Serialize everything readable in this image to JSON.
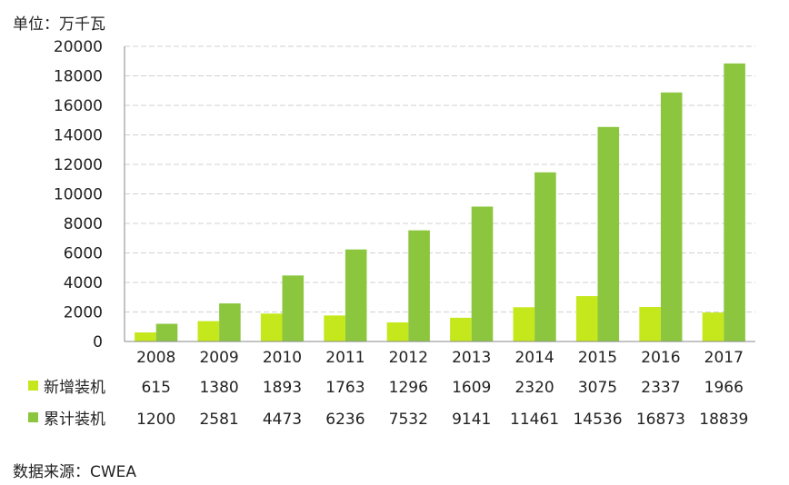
{
  "unit_label": "单位：万千瓦",
  "source_label": "数据来源：CWEA",
  "chart_data": {
    "type": "bar",
    "title": "",
    "xlabel": "",
    "ylabel": "",
    "ylim": [
      0,
      20000
    ],
    "yticks": [
      0,
      2000,
      4000,
      6000,
      8000,
      10000,
      12000,
      14000,
      16000,
      18000,
      20000
    ],
    "grid": true,
    "legend_placement": "bottom-left (data table)",
    "categories": [
      "2008",
      "2009",
      "2010",
      "2011",
      "2012",
      "2013",
      "2014",
      "2015",
      "2016",
      "2017"
    ],
    "series": [
      {
        "name": "新增装机",
        "color": "#c5e81c",
        "values": [
          615,
          1380,
          1893,
          1763,
          1296,
          1609,
          2320,
          3075,
          2337,
          1966
        ]
      },
      {
        "name": "累计装机",
        "color": "#8cc63f",
        "values": [
          1200,
          2581,
          4473,
          6236,
          7532,
          9141,
          11461,
          14536,
          16873,
          18839
        ]
      }
    ]
  }
}
